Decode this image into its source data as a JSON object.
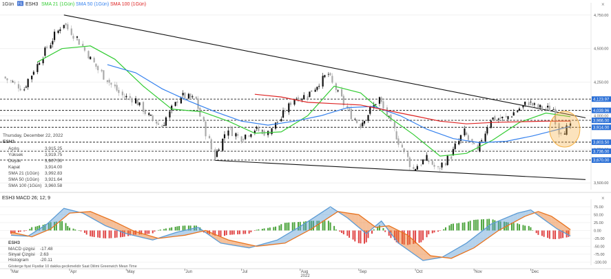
{
  "header": {
    "interval": "1Gün",
    "badge": "FE",
    "symbol": "ESH3",
    "sma21_label": "SMA 21 (1Gün)",
    "sma50_label": "SMA 50 (1Gün)",
    "sma100_label": "SMA 100 (1Gün)",
    "close_btn": "×"
  },
  "colors": {
    "sma21": "#33cc33",
    "sma50": "#3380ee",
    "sma100": "#dd2222",
    "up_candle": "#111111",
    "down_candle": "#aaaaaa",
    "tag_blue": "#2a6fd6",
    "macd_line": "#5b9bd5",
    "signal_line": "#e8731e",
    "hist_pos": "#4aa33a",
    "hist_neg": "#e04444",
    "highlight": "#f5b041"
  },
  "info": {
    "date": "Thursday, December 22, 2022",
    "symbol": "ESH3",
    "rows": [
      {
        "label": "Açılış",
        "value": "3,915.25"
      },
      {
        "label": "Yüksek",
        "value": "3,919.75"
      },
      {
        "label": "Düşük",
        "value": "3,907.50"
      },
      {
        "label": "Kapat",
        "value": "3,914.00"
      },
      {
        "label": "SMA 21 (1Gün)",
        "value": "3,992.83"
      },
      {
        "label": "SMA 50 (1Gün)",
        "value": "3,921.64"
      },
      {
        "label": "SMA 100 (1Gün)",
        "value": "3,960.58"
      }
    ]
  },
  "price_axis": {
    "ticks": [
      "4,750.00",
      "4,500.00",
      "4,250.00",
      "4,000.00",
      "3,750.00",
      "3,500.00"
    ],
    "tags": [
      {
        "value": 4123.97,
        "text": "4,123.97"
      },
      {
        "value": 4039.96,
        "text": "4,039.96"
      },
      {
        "value": 3966.0,
        "text": "3,966.00"
      },
      {
        "value": 3914.0,
        "text": "3,914.00"
      },
      {
        "value": 3803.5,
        "text": "3,803.50"
      },
      {
        "value": 3736.0,
        "text": "3,736.00"
      },
      {
        "value": 3670.0,
        "text": "3,670.00"
      }
    ]
  },
  "macd_panel": {
    "title": "ESH3 MACD 26; 12; 9",
    "ticks": [
      "75.00",
      "50.00",
      "25.00",
      "0.00",
      "-25.00",
      "-50.00",
      "-75.00",
      "-100.00"
    ],
    "legend_symbol": "ESH3",
    "macd_label": "MACD çizgisi",
    "macd_value": "-17.48",
    "signal_label": "Sinyal Çizgisi",
    "signal_value": "2.63",
    "hist_label": "Histogram",
    "hist_value": "-20.11",
    "note": "Gösterge fiyat  Fiyatlar 10 dakika gecikmelidir   Saat Dilimi  Greenwich Mean Time"
  },
  "x_axis": {
    "months": [
      "Mar",
      "Apr",
      "May",
      "Jun",
      "Jul",
      "Aug",
      "Sep",
      "Oct",
      "Nov",
      "Dec"
    ],
    "year": "2022"
  },
  "chart_data": [
    {
      "type": "candlestick",
      "title": "ESH3",
      "x_range": [
        "2022-02-25",
        "2022-12-22"
      ],
      "ylim": [
        3450,
        4800
      ],
      "horizontal_levels": [
        4123.97,
        4039.96,
        3966.0,
        3914.0,
        3803.5,
        3736.0,
        3670.0
      ],
      "trendlines": [
        {
          "name": "upper channel",
          "points": [
            [
              "2022-03-29",
              4750
            ],
            [
              "2022-12-30",
              3985
            ]
          ]
        },
        {
          "name": "lower channel",
          "points": [
            [
              "2022-06-17",
              3668
            ],
            [
              "2022-12-30",
              3525
            ]
          ]
        }
      ],
      "close_path": [
        [
          "2022-02-25",
          4290
        ],
        [
          "2022-03-08",
          4200
        ],
        [
          "2022-03-18",
          4450
        ],
        [
          "2022-03-29",
          4690
        ],
        [
          "2022-04-05",
          4580
        ],
        [
          "2022-04-14",
          4390
        ],
        [
          "2022-04-21",
          4270
        ],
        [
          "2022-04-29",
          4150
        ],
        [
          "2022-05-06",
          4120
        ],
        [
          "2022-05-13",
          4000
        ],
        [
          "2022-05-20",
          3920
        ],
        [
          "2022-05-30",
          4150
        ],
        [
          "2022-06-07",
          4120
        ],
        [
          "2022-06-17",
          3690
        ],
        [
          "2022-06-24",
          3910
        ],
        [
          "2022-07-01",
          3830
        ],
        [
          "2022-07-08",
          3900
        ],
        [
          "2022-07-15",
          3870
        ],
        [
          "2022-07-22",
          3980
        ],
        [
          "2022-07-29",
          4130
        ],
        [
          "2022-08-05",
          4150
        ],
        [
          "2022-08-16",
          4310
        ],
        [
          "2022-08-26",
          4050
        ],
        [
          "2022-09-02",
          3930
        ],
        [
          "2022-09-12",
          4130
        ],
        [
          "2022-09-20",
          3890
        ],
        [
          "2022-09-30",
          3600
        ],
        [
          "2022-10-07",
          3680
        ],
        [
          "2022-10-13",
          3600
        ],
        [
          "2022-10-20",
          3700
        ],
        [
          "2022-10-27",
          3880
        ],
        [
          "2022-11-03",
          3730
        ],
        [
          "2022-11-10",
          3980
        ],
        [
          "2022-11-18",
          3980
        ],
        [
          "2022-11-30",
          4100
        ],
        [
          "2022-12-05",
          4060
        ],
        [
          "2022-12-13",
          4050
        ],
        [
          "2022-12-16",
          3880
        ],
        [
          "2022-12-22",
          3914
        ]
      ],
      "series": [
        {
          "name": "SMA 21 (1Gün)",
          "points": [
            [
              "2022-03-15",
              4400
            ],
            [
              "2022-03-28",
              4500
            ],
            [
              "2022-04-12",
              4520
            ],
            [
              "2022-04-25",
              4420
            ],
            [
              "2022-05-10",
              4220
            ],
            [
              "2022-05-25",
              4050
            ],
            [
              "2022-06-10",
              4030
            ],
            [
              "2022-06-24",
              3960
            ],
            [
              "2022-07-08",
              3870
            ],
            [
              "2022-07-22",
              3880
            ],
            [
              "2022-08-05",
              4000
            ],
            [
              "2022-08-19",
              4220
            ],
            [
              "2022-09-02",
              4170
            ],
            [
              "2022-09-16",
              4000
            ],
            [
              "2022-09-30",
              3860
            ],
            [
              "2022-10-14",
              3700
            ],
            [
              "2022-10-28",
              3720
            ],
            [
              "2022-11-11",
              3820
            ],
            [
              "2022-11-25",
              3950
            ],
            [
              "2022-12-09",
              4020
            ],
            [
              "2022-12-22",
              3992.83
            ]
          ]
        },
        {
          "name": "SMA 50 (1Gün)",
          "points": [
            [
              "2022-04-21",
              4380
            ],
            [
              "2022-05-06",
              4320
            ],
            [
              "2022-05-20",
              4200
            ],
            [
              "2022-06-03",
              4110
            ],
            [
              "2022-06-17",
              4030
            ],
            [
              "2022-07-01",
              3960
            ],
            [
              "2022-07-15",
              3930
            ],
            [
              "2022-07-29",
              3960
            ],
            [
              "2022-08-12",
              4000
            ],
            [
              "2022-08-26",
              4060
            ],
            [
              "2022-09-09",
              4070
            ],
            [
              "2022-09-23",
              4000
            ],
            [
              "2022-10-07",
              3900
            ],
            [
              "2022-10-21",
              3830
            ],
            [
              "2022-11-04",
              3800
            ],
            [
              "2022-11-18",
              3810
            ],
            [
              "2022-12-02",
              3850
            ],
            [
              "2022-12-22",
              3921.64
            ]
          ]
        },
        {
          "name": "SMA 100 (1Gün)",
          "points": [
            [
              "2022-07-08",
              4160
            ],
            [
              "2022-07-22",
              4140
            ],
            [
              "2022-08-05",
              4100
            ],
            [
              "2022-08-19",
              4090
            ],
            [
              "2022-09-02",
              4080
            ],
            [
              "2022-09-16",
              4040
            ],
            [
              "2022-09-30",
              4000
            ],
            [
              "2022-10-14",
              3960
            ],
            [
              "2022-10-28",
              3940
            ],
            [
              "2022-11-11",
              3950
            ],
            [
              "2022-11-25",
              3955
            ],
            [
              "2022-12-09",
              3960
            ],
            [
              "2022-12-22",
              3960.58
            ]
          ]
        }
      ]
    },
    {
      "type": "line",
      "title": "ESH3 MACD 26; 12; 9",
      "ylim": [
        -110,
        90
      ],
      "series": [
        {
          "name": "MACD çizgisi",
          "points": [
            [
              "2022-03-01",
              -15
            ],
            [
              "2022-03-10",
              -18
            ],
            [
              "2022-03-20",
              20
            ],
            [
              "2022-03-29",
              70
            ],
            [
              "2022-04-08",
              55
            ],
            [
              "2022-04-20",
              15
            ],
            [
              "2022-05-01",
              -10
            ],
            [
              "2022-05-15",
              -30
            ],
            [
              "2022-05-28",
              -5
            ],
            [
              "2022-06-08",
              10
            ],
            [
              "2022-06-20",
              -40
            ],
            [
              "2022-07-05",
              -55
            ],
            [
              "2022-07-20",
              -30
            ],
            [
              "2022-08-03",
              20
            ],
            [
              "2022-08-17",
              75
            ],
            [
              "2022-08-26",
              40
            ],
            [
              "2022-09-05",
              -10
            ],
            [
              "2022-09-13",
              30
            ],
            [
              "2022-09-22",
              -40
            ],
            [
              "2022-10-05",
              -95
            ],
            [
              "2022-10-15",
              -85
            ],
            [
              "2022-10-28",
              -40
            ],
            [
              "2022-11-10",
              20
            ],
            [
              "2022-11-24",
              55
            ],
            [
              "2022-12-01",
              65
            ],
            [
              "2022-12-08",
              35
            ],
            [
              "2022-12-15",
              5
            ],
            [
              "2022-12-22",
              -17.48
            ]
          ]
        },
        {
          "name": "Sinyal Çizgisi",
          "points": [
            [
              "2022-03-01",
              -5
            ],
            [
              "2022-03-12",
              -20
            ],
            [
              "2022-03-22",
              5
            ],
            [
              "2022-04-01",
              55
            ],
            [
              "2022-04-12",
              60
            ],
            [
              "2022-04-24",
              30
            ],
            [
              "2022-05-05",
              -2
            ],
            [
              "2022-05-18",
              -25
            ],
            [
              "2022-06-01",
              -15
            ],
            [
              "2022-06-12",
              0
            ],
            [
              "2022-06-24",
              -30
            ],
            [
              "2022-07-09",
              -50
            ],
            [
              "2022-07-24",
              -40
            ],
            [
              "2022-08-07",
              5
            ],
            [
              "2022-08-21",
              60
            ],
            [
              "2022-09-01",
              50
            ],
            [
              "2022-09-10",
              10
            ],
            [
              "2022-09-17",
              15
            ],
            [
              "2022-09-27",
              -15
            ],
            [
              "2022-10-09",
              -80
            ],
            [
              "2022-10-20",
              -88
            ],
            [
              "2022-11-01",
              -55
            ],
            [
              "2022-11-14",
              0
            ],
            [
              "2022-11-28",
              45
            ],
            [
              "2022-12-05",
              60
            ],
            [
              "2022-12-12",
              45
            ],
            [
              "2022-12-18",
              20
            ],
            [
              "2022-12-22",
              2.63
            ]
          ]
        }
      ]
    }
  ]
}
